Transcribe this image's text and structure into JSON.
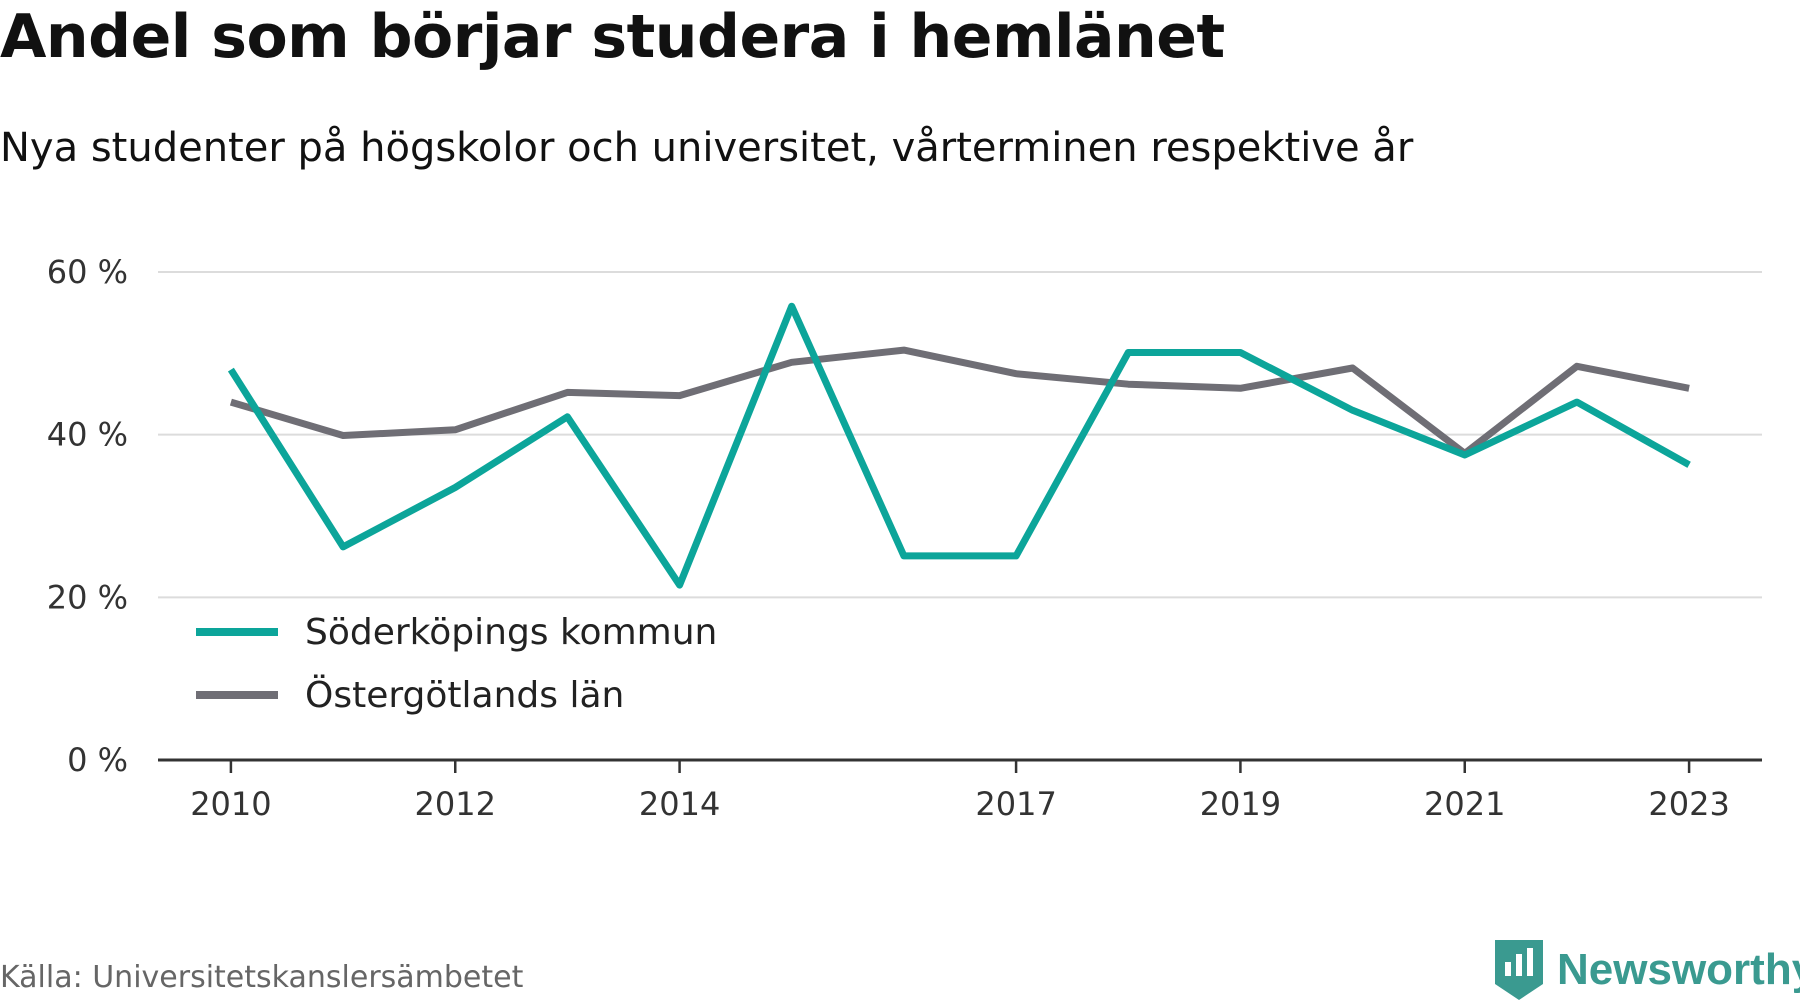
{
  "header": {
    "title": "Andel som börjar studera i hemlänet",
    "subtitle": "Nya studenter på högskolor och universitet, vårterminen respektive år"
  },
  "footer": {
    "source": "Källa: Universitetskanslersämbetet",
    "brand": "Newsworthy",
    "brand_icon": "newsworthy-logo-icon"
  },
  "colors": {
    "series_teal": "#0ca59a",
    "series_gray": "#6f6e75",
    "grid": "#dcdcdc",
    "axis": "#333333",
    "brand": "#3a9a90"
  },
  "chart_data": {
    "type": "line",
    "title": "Andel som börjar studera i hemlänet",
    "subtitle": "Nya studenter på högskolor och universitet, vårterminen respektive år",
    "xlabel": "",
    "ylabel": "",
    "x": [
      2010,
      2011,
      2012,
      2013,
      2014,
      2015,
      2016,
      2017,
      2018,
      2019,
      2020,
      2021,
      2022,
      2023
    ],
    "x_tick_labels": [
      "2010",
      "2012",
      "2014",
      "2017",
      "2019",
      "2021",
      "2023"
    ],
    "y_ticks": [
      0,
      20,
      40,
      60
    ],
    "y_tick_labels": [
      "0 %",
      "20 %",
      "40 %",
      "60 %"
    ],
    "ylim": [
      0,
      60
    ],
    "xlim": [
      2009.35,
      2023.65
    ],
    "grid": true,
    "legend_position": "bottom-left",
    "series": [
      {
        "name": "Söderköpings kommun",
        "color": "#0ca59a",
        "values": [
          48,
          26.2,
          33.5,
          42.2,
          21.5,
          55.8,
          25.1,
          25.1,
          50.1,
          50.1,
          43,
          37.5,
          44,
          36.3
        ]
      },
      {
        "name": "Östergötlands län",
        "color": "#6f6e75",
        "values": [
          44,
          39.9,
          40.6,
          45.2,
          44.8,
          48.9,
          50.4,
          47.5,
          46.2,
          45.7,
          48.2,
          37.7,
          48.4,
          45.7
        ]
      }
    ]
  }
}
